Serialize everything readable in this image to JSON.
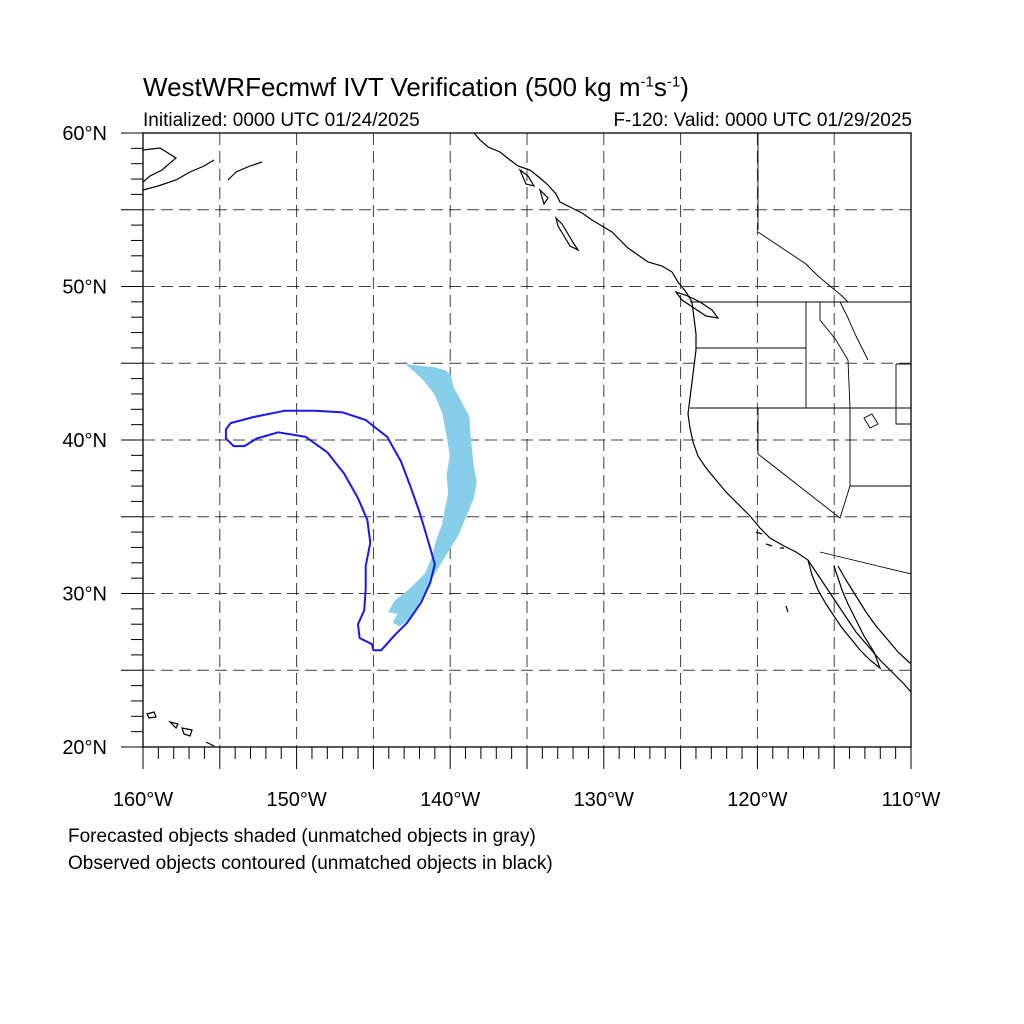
{
  "title": {
    "main": "WestWRFecmwf IVT Verification (500 kg m",
    "sup1": "-1",
    "mid": "s",
    "sup2": "-1",
    "end": ")"
  },
  "subtitle_left": "Initialized: 0000 UTC 01/24/2025",
  "subtitle_right": "F-120: Valid: 0000 UTC 01/29/2025",
  "footer": {
    "line1": "Forecasted objects shaded (unmatched objects in gray)",
    "line2": "Observed objects contoured (unmatched objects in black)"
  },
  "map": {
    "lon_range": [
      -160,
      -110
    ],
    "lat_range": [
      20,
      60
    ],
    "lon_ticks": [
      {
        "value": -160,
        "label": "160°W"
      },
      {
        "value": -150,
        "label": "150°W"
      },
      {
        "value": -140,
        "label": "140°W"
      },
      {
        "value": -130,
        "label": "130°W"
      },
      {
        "value": -120,
        "label": "120°W"
      },
      {
        "value": -110,
        "label": "110°W"
      }
    ],
    "lat_ticks": [
      {
        "value": 60,
        "label": "60°N"
      },
      {
        "value": 50,
        "label": "50°N"
      },
      {
        "value": 40,
        "label": "40°N"
      },
      {
        "value": 30,
        "label": "30°N"
      },
      {
        "value": 20,
        "label": "20°N"
      }
    ],
    "grid_lons": [
      -155,
      -150,
      -145,
      -140,
      -135,
      -130,
      -125,
      -120,
      -115
    ],
    "grid_lats": [
      25,
      30,
      35,
      40,
      45,
      50,
      55
    ],
    "colors": {
      "forecast_fill": "#87ceeb",
      "observed_contour": "#1a1ae6",
      "coastline": "#000000",
      "grid": "#000000"
    },
    "forecast_object": {
      "name": "Forecasted object (shaded)",
      "polygon": [
        [
          -142.8,
          44.9
        ],
        [
          -141.0,
          44.7
        ],
        [
          -140.3,
          44.5
        ],
        [
          -140.0,
          44.2
        ],
        [
          -139.8,
          43.4
        ],
        [
          -139.2,
          42.3
        ],
        [
          -138.8,
          41.6
        ],
        [
          -138.7,
          40.2
        ],
        [
          -138.5,
          38.3
        ],
        [
          -138.3,
          37.2
        ],
        [
          -138.5,
          36.2
        ],
        [
          -139.0,
          35.0
        ],
        [
          -139.5,
          33.8
        ],
        [
          -140.3,
          32.5
        ],
        [
          -141.2,
          31.0
        ],
        [
          -142.1,
          29.3
        ],
        [
          -142.7,
          28.3
        ],
        [
          -143.3,
          27.9
        ],
        [
          -143.7,
          28.1
        ],
        [
          -143.4,
          28.7
        ],
        [
          -144.0,
          28.8
        ],
        [
          -143.6,
          29.5
        ],
        [
          -142.5,
          30.4
        ],
        [
          -141.6,
          31.3
        ],
        [
          -141.2,
          32.3
        ],
        [
          -140.9,
          33.4
        ],
        [
          -140.5,
          34.5
        ],
        [
          -140.3,
          35.6
        ],
        [
          -140.1,
          36.5
        ],
        [
          -140.2,
          37.7
        ],
        [
          -140.0,
          39.0
        ],
        [
          -140.2,
          40.3
        ],
        [
          -140.5,
          41.8
        ],
        [
          -141.0,
          43.0
        ],
        [
          -141.8,
          44.0
        ]
      ]
    },
    "observed_object": {
      "name": "Observed object (contoured)",
      "polygon": [
        [
          -154.3,
          41.1
        ],
        [
          -152.8,
          41.5
        ],
        [
          -150.8,
          41.9
        ],
        [
          -148.8,
          41.9
        ],
        [
          -147.0,
          41.8
        ],
        [
          -145.5,
          41.3
        ],
        [
          -144.1,
          40.2
        ],
        [
          -143.2,
          38.6
        ],
        [
          -142.6,
          37.0
        ],
        [
          -142.0,
          35.3
        ],
        [
          -141.4,
          33.3
        ],
        [
          -141.0,
          31.9
        ],
        [
          -141.3,
          30.7
        ],
        [
          -141.9,
          29.4
        ],
        [
          -142.8,
          28.1
        ],
        [
          -143.6,
          27.3
        ],
        [
          -144.5,
          26.3
        ],
        [
          -145.0,
          26.3
        ],
        [
          -145.1,
          26.7
        ],
        [
          -145.9,
          27.1
        ],
        [
          -146.0,
          28.0
        ],
        [
          -145.6,
          28.9
        ],
        [
          -145.5,
          30.3
        ],
        [
          -145.5,
          31.8
        ],
        [
          -145.2,
          33.3
        ],
        [
          -145.4,
          34.8
        ],
        [
          -146.0,
          36.2
        ],
        [
          -146.9,
          37.8
        ],
        [
          -148.0,
          39.2
        ],
        [
          -149.4,
          40.2
        ],
        [
          -151.2,
          40.5
        ],
        [
          -152.6,
          40.1
        ],
        [
          -153.4,
          39.6
        ],
        [
          -154.1,
          39.6
        ],
        [
          -154.6,
          40.1
        ],
        [
          -154.6,
          40.7
        ]
      ]
    }
  }
}
